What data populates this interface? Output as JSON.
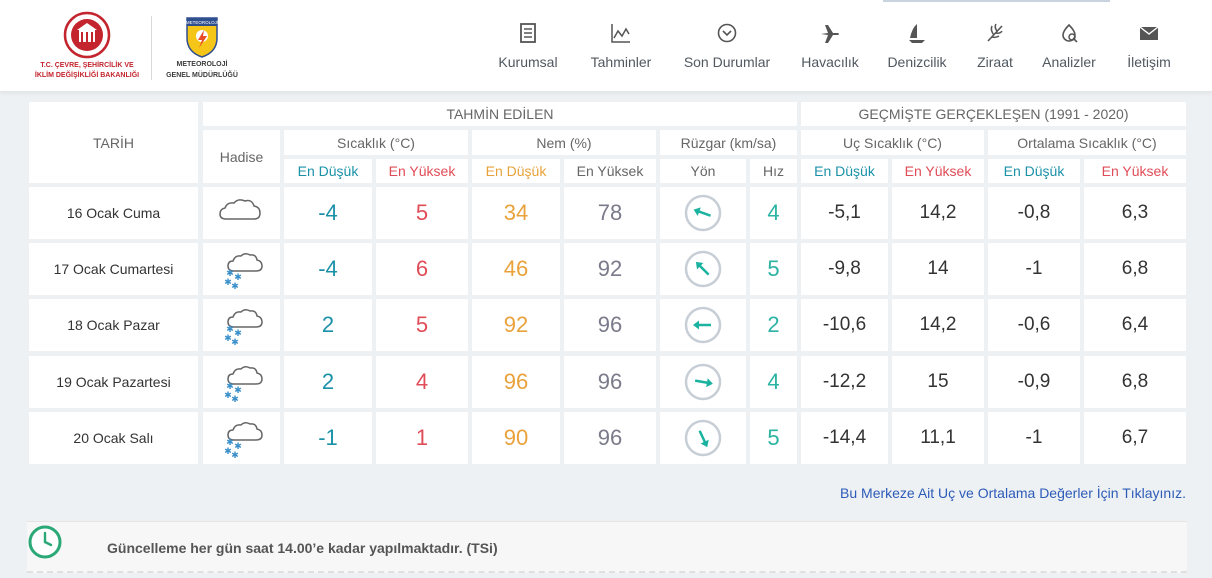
{
  "header": {
    "ministry_logo_text": [
      "T.C. ÇEVRE, ŞEHİRCİLİK VE",
      "İKLİM DEĞİŞİKLİĞİ BAKANLIĞI"
    ],
    "mgm_logo_text": [
      "METEOROLOJİ",
      "GENEL MÜDÜRLÜĞÜ"
    ],
    "mgm_logo_badge": "METEOROLOJİ",
    "nav": [
      {
        "label": "Kurumsal",
        "icon": "document-icon"
      },
      {
        "label": "Tahminler",
        "icon": "chart-icon"
      },
      {
        "label": "Son Durumlar",
        "icon": "chevron-circle-icon"
      },
      {
        "label": "Havacılık",
        "icon": "airplane-icon"
      },
      {
        "label": "Denizcilik",
        "icon": "sailboat-icon"
      },
      {
        "label": "Ziraat",
        "icon": "leaf-icon"
      },
      {
        "label": "Analizler",
        "icon": "analysis-icon"
      },
      {
        "label": "İletişim",
        "icon": "envelope-icon"
      }
    ]
  },
  "table": {
    "forecast_title": "TAHMİN EDİLEN",
    "history_title": "GEÇMİŞTE GERÇEKLEŞEN (1991 - 2020)",
    "col_date": "TARİH",
    "col_event": "Hadise",
    "col_temp": "Sıcaklık (°C)",
    "col_humidity": "Nem (%)",
    "col_wind": "Rüzgar (km/sa)",
    "col_extreme": "Uç Sıcaklık (°C)",
    "col_average": "Ortalama Sıcaklık (°C)",
    "low": "En Düşük",
    "high": "En Yüksek",
    "direction": "Yön",
    "speed": "Hız",
    "rows": [
      {
        "date": "16 Ocak Cuma",
        "event": "cloudy-icon",
        "tmin": "-4",
        "tmax": "5",
        "hmin": "34",
        "hmax": "78",
        "wind_deg": 200,
        "speed": "4",
        "ext_low": "-5,1",
        "ext_high": "14,2",
        "avg_low": "-0,8",
        "avg_high": "6,3"
      },
      {
        "date": "17 Ocak Cumartesi",
        "event": "snow-icon",
        "tmin": "-4",
        "tmax": "6",
        "hmin": "46",
        "hmax": "92",
        "wind_deg": 225,
        "speed": "5",
        "ext_low": "-9,8",
        "ext_high": "14",
        "avg_low": "-1",
        "avg_high": "6,8"
      },
      {
        "date": "18 Ocak Pazar",
        "event": "snow-icon",
        "tmin": "2",
        "tmax": "5",
        "hmin": "92",
        "hmax": "96",
        "wind_deg": 180,
        "speed": "2",
        "ext_low": "-10,6",
        "ext_high": "14,2",
        "avg_low": "-0,6",
        "avg_high": "6,4"
      },
      {
        "date": "19 Ocak Pazartesi",
        "event": "snow-icon",
        "tmin": "2",
        "tmax": "4",
        "hmin": "96",
        "hmax": "96",
        "wind_deg": 10,
        "speed": "4",
        "ext_low": "-12,2",
        "ext_high": "15",
        "avg_low": "-0,9",
        "avg_high": "6,8"
      },
      {
        "date": "20 Ocak Salı",
        "event": "snow-icon",
        "tmin": "-1",
        "tmax": "1",
        "hmin": "90",
        "hmax": "96",
        "wind_deg": 65,
        "speed": "5",
        "ext_low": "-14,4",
        "ext_high": "11,1",
        "avg_low": "-1",
        "avg_high": "6,7"
      }
    ]
  },
  "footer": {
    "link_text": "Bu Merkeze Ait Uç ve Ortalama Değerler İçin Tıklayınız.",
    "update_text": "Güncelleme her gün saat 14.00’e kadar yapılmaktadır. (TSi)"
  },
  "colors": {
    "low": "#1b91a8",
    "high": "#e04c57",
    "humidity": "#e9a23b",
    "wind": "#2bb3a3",
    "link": "#2d5bb8"
  }
}
